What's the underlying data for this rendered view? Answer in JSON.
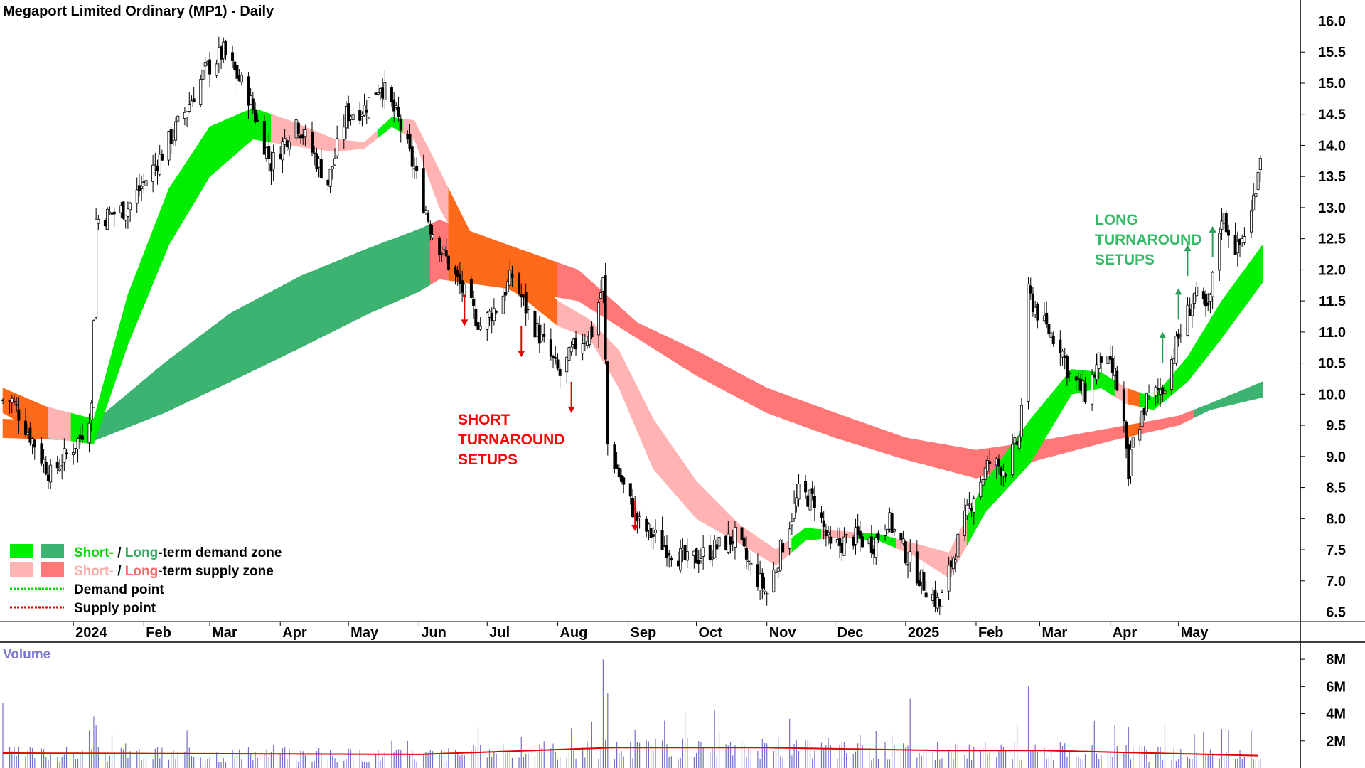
{
  "chart_data": {
    "type": "candlestick",
    "title": "Megaport Limited Ordinary (MP1) - Daily",
    "price_axis": {
      "ylim": [
        6.3,
        16.2
      ],
      "ticks": [
        "16.0",
        "15.5",
        "15.0",
        "14.5",
        "14.0",
        "13.5",
        "13.0",
        "12.5",
        "12.0",
        "11.5",
        "11.0",
        "10.5",
        "10.0",
        "9.5",
        "9.0",
        "8.5",
        "8.0",
        "7.5",
        "7.0",
        "6.5"
      ]
    },
    "x_axis": {
      "labels": [
        {
          "text": "2024",
          "date": "2024-01-01",
          "bold": true
        },
        {
          "text": "Feb",
          "date": "2024-02-01"
        },
        {
          "text": "Mar",
          "date": "2024-03-01"
        },
        {
          "text": "Apr",
          "date": "2024-04-01"
        },
        {
          "text": "May",
          "date": "2024-05-01"
        },
        {
          "text": "Jun",
          "date": "2024-06-01"
        },
        {
          "text": "Jul",
          "date": "2024-07-01"
        },
        {
          "text": "Aug",
          "date": "2024-08-01"
        },
        {
          "text": "Sep",
          "date": "2024-09-01"
        },
        {
          "text": "Oct",
          "date": "2024-10-01"
        },
        {
          "text": "Nov",
          "date": "2024-11-01"
        },
        {
          "text": "Dec",
          "date": "2024-12-01"
        },
        {
          "text": "2025",
          "date": "2025-01-01",
          "bold": true
        },
        {
          "text": "Feb",
          "date": "2025-02-01"
        },
        {
          "text": "Mar",
          "date": "2025-03-01"
        },
        {
          "text": "Apr",
          "date": "2025-04-01"
        },
        {
          "text": "May",
          "date": "2025-05-01"
        }
      ]
    },
    "price_series": [
      {
        "date": "2023-12-05",
        "close": 9.9
      },
      {
        "date": "2023-12-15",
        "close": 9.2
      },
      {
        "date": "2023-12-22",
        "close": 8.7
      },
      {
        "date": "2024-01-04",
        "close": 9.3
      },
      {
        "date": "2024-01-09",
        "close": 9.8
      },
      {
        "date": "2024-01-11",
        "close": 12.8
      },
      {
        "date": "2024-01-25",
        "close": 13.0
      },
      {
        "date": "2024-02-08",
        "close": 13.8
      },
      {
        "date": "2024-02-20",
        "close": 14.6
      },
      {
        "date": "2024-02-28",
        "close": 15.2
      },
      {
        "date": "2024-03-07",
        "close": 15.5
      },
      {
        "date": "2024-03-18",
        "close": 14.8
      },
      {
        "date": "2024-03-28",
        "close": 13.7
      },
      {
        "date": "2024-04-08",
        "close": 14.4
      },
      {
        "date": "2024-04-22",
        "close": 13.4
      },
      {
        "date": "2024-04-30",
        "close": 14.5
      },
      {
        "date": "2024-05-08",
        "close": 14.6
      },
      {
        "date": "2024-05-15",
        "close": 15.0
      },
      {
        "date": "2024-05-23",
        "close": 14.4
      },
      {
        "date": "2024-05-30",
        "close": 13.6
      },
      {
        "date": "2024-06-06",
        "close": 12.7
      },
      {
        "date": "2024-06-14",
        "close": 12.1
      },
      {
        "date": "2024-06-21",
        "close": 11.6
      },
      {
        "date": "2024-06-28",
        "close": 11.1
      },
      {
        "date": "2024-07-05",
        "close": 11.4
      },
      {
        "date": "2024-07-12",
        "close": 11.9
      },
      {
        "date": "2024-07-19",
        "close": 11.3
      },
      {
        "date": "2024-07-26",
        "close": 10.8
      },
      {
        "date": "2024-08-02",
        "close": 10.3
      },
      {
        "date": "2024-08-09",
        "close": 10.8
      },
      {
        "date": "2024-08-16",
        "close": 11.0
      },
      {
        "date": "2024-08-21",
        "close": 11.8
      },
      {
        "date": "2024-08-23",
        "close": 9.2
      },
      {
        "date": "2024-08-30",
        "close": 8.5
      },
      {
        "date": "2024-09-06",
        "close": 7.9
      },
      {
        "date": "2024-09-16",
        "close": 7.6
      },
      {
        "date": "2024-09-27",
        "close": 7.3
      },
      {
        "date": "2024-10-08",
        "close": 7.5
      },
      {
        "date": "2024-10-18",
        "close": 7.7
      },
      {
        "date": "2024-10-25",
        "close": 7.2
      },
      {
        "date": "2024-11-01",
        "close": 6.8
      },
      {
        "date": "2024-11-08",
        "close": 7.6
      },
      {
        "date": "2024-11-15",
        "close": 8.4
      },
      {
        "date": "2024-11-22",
        "close": 8.3
      },
      {
        "date": "2024-11-29",
        "close": 7.5
      },
      {
        "date": "2024-12-09",
        "close": 7.7
      },
      {
        "date": "2024-12-18",
        "close": 7.6
      },
      {
        "date": "2024-12-24",
        "close": 8.0
      },
      {
        "date": "2025-01-03",
        "close": 7.3
      },
      {
        "date": "2025-01-10",
        "close": 6.9
      },
      {
        "date": "2025-01-16",
        "close": 6.6
      },
      {
        "date": "2025-01-22",
        "close": 7.4
      },
      {
        "date": "2025-01-31",
        "close": 8.4
      },
      {
        "date": "2025-02-07",
        "close": 8.9
      },
      {
        "date": "2025-02-14",
        "close": 8.8
      },
      {
        "date": "2025-02-20",
        "close": 9.3
      },
      {
        "date": "2025-02-24",
        "close": 11.6
      },
      {
        "date": "2025-03-03",
        "close": 11.1
      },
      {
        "date": "2025-03-10",
        "close": 10.8
      },
      {
        "date": "2025-03-14",
        "close": 10.3
      },
      {
        "date": "2025-03-21",
        "close": 10.0
      },
      {
        "date": "2025-03-28",
        "close": 10.6
      },
      {
        "date": "2025-04-03",
        "close": 10.3
      },
      {
        "date": "2025-04-07",
        "close": 9.5
      },
      {
        "date": "2025-04-09",
        "close": 8.5
      },
      {
        "date": "2025-04-10",
        "close": 9.1
      },
      {
        "date": "2025-04-17",
        "close": 9.9
      },
      {
        "date": "2025-04-24",
        "close": 10.1
      },
      {
        "date": "2025-05-01",
        "close": 10.9
      },
      {
        "date": "2025-05-08",
        "close": 11.6
      },
      {
        "date": "2025-05-14",
        "close": 11.3
      },
      {
        "date": "2025-05-20",
        "close": 12.9
      },
      {
        "date": "2025-05-27",
        "close": 12.3
      },
      {
        "date": "2025-06-02",
        "close": 12.9
      },
      {
        "date": "2025-06-06",
        "close": 13.9
      }
    ],
    "bands": {
      "short_term": [
        {
          "date": "2023-12-01",
          "lo": 9.7,
          "hi": 10.1,
          "state": "supply"
        },
        {
          "date": "2023-12-20",
          "lo": 9.3,
          "hi": 9.8,
          "state": "supply"
        },
        {
          "date": "2024-01-10",
          "lo": 9.2,
          "hi": 9.6,
          "state": "demand"
        },
        {
          "date": "2024-01-25",
          "lo": 10.8,
          "hi": 11.6,
          "state": "demand"
        },
        {
          "date": "2024-02-12",
          "lo": 12.4,
          "hi": 13.3,
          "state": "demand"
        },
        {
          "date": "2024-03-01",
          "lo": 13.5,
          "hi": 14.3,
          "state": "demand"
        },
        {
          "date": "2024-03-20",
          "lo": 14.1,
          "hi": 14.6,
          "state": "demand"
        },
        {
          "date": "2024-04-05",
          "lo": 14.0,
          "hi": 14.4,
          "state": "supply"
        },
        {
          "date": "2024-04-25",
          "lo": 13.9,
          "hi": 14.1,
          "state": "supply"
        },
        {
          "date": "2024-05-08",
          "lo": 13.95,
          "hi": 14.05,
          "state": "supply"
        },
        {
          "date": "2024-05-20",
          "lo": 14.3,
          "hi": 14.45,
          "state": "demand"
        },
        {
          "date": "2024-05-30",
          "lo": 14.1,
          "hi": 14.4,
          "state": "supply"
        },
        {
          "date": "2024-06-10",
          "lo": 13.0,
          "hi": 13.6,
          "state": "supply"
        },
        {
          "date": "2024-06-25",
          "lo": 12.0,
          "hi": 12.5,
          "state": "supply"
        },
        {
          "date": "2024-07-15",
          "lo": 11.6,
          "hi": 12.1,
          "state": "supply"
        },
        {
          "date": "2024-08-01",
          "lo": 11.1,
          "hi": 11.5,
          "state": "supply"
        },
        {
          "date": "2024-08-15",
          "lo": 10.9,
          "hi": 11.2,
          "state": "supply"
        },
        {
          "date": "2024-08-28",
          "lo": 10.1,
          "hi": 10.7,
          "state": "supply"
        },
        {
          "date": "2024-09-12",
          "lo": 8.8,
          "hi": 9.6,
          "state": "supply"
        },
        {
          "date": "2024-10-01",
          "lo": 8.0,
          "hi": 8.6,
          "state": "supply"
        },
        {
          "date": "2024-10-20",
          "lo": 7.6,
          "hi": 7.9,
          "state": "supply"
        },
        {
          "date": "2024-11-05",
          "lo": 7.25,
          "hi": 7.5,
          "state": "supply"
        },
        {
          "date": "2024-11-18",
          "lo": 7.65,
          "hi": 7.85,
          "state": "demand"
        },
        {
          "date": "2024-12-02",
          "lo": 7.7,
          "hi": 7.8,
          "state": "supply"
        },
        {
          "date": "2024-12-20",
          "lo": 7.65,
          "hi": 7.75,
          "state": "demand"
        },
        {
          "date": "2025-01-05",
          "lo": 7.4,
          "hi": 7.6,
          "state": "supply"
        },
        {
          "date": "2025-01-20",
          "lo": 7.05,
          "hi": 7.45,
          "state": "supply"
        },
        {
          "date": "2025-02-05",
          "lo": 8.1,
          "hi": 8.6,
          "state": "demand"
        },
        {
          "date": "2025-02-25",
          "lo": 8.9,
          "hi": 9.6,
          "state": "demand"
        },
        {
          "date": "2025-03-15",
          "lo": 10.0,
          "hi": 10.4,
          "state": "demand"
        },
        {
          "date": "2025-03-28",
          "lo": 10.1,
          "hi": 10.35,
          "state": "demand"
        },
        {
          "date": "2025-04-08",
          "lo": 9.85,
          "hi": 10.1,
          "state": "supply"
        },
        {
          "date": "2025-04-20",
          "lo": 9.75,
          "hi": 9.95,
          "state": "demand"
        },
        {
          "date": "2025-05-05",
          "lo": 10.2,
          "hi": 10.6,
          "state": "demand"
        },
        {
          "date": "2025-05-20",
          "lo": 10.9,
          "hi": 11.5,
          "state": "demand"
        },
        {
          "date": "2025-06-07",
          "lo": 11.8,
          "hi": 12.4,
          "state": "demand"
        }
      ],
      "long_term": [
        {
          "date": "2023-12-01",
          "lo": 9.3,
          "hi": 9.6,
          "state": "supply"
        },
        {
          "date": "2024-01-10",
          "lo": 9.25,
          "hi": 9.55,
          "state": "demand"
        },
        {
          "date": "2024-02-10",
          "lo": 9.7,
          "hi": 10.5,
          "state": "demand"
        },
        {
          "date": "2024-03-10",
          "lo": 10.2,
          "hi": 11.3,
          "state": "demand"
        },
        {
          "date": "2024-04-10",
          "lo": 10.75,
          "hi": 11.9,
          "state": "demand"
        },
        {
          "date": "2024-05-10",
          "lo": 11.3,
          "hi": 12.35,
          "state": "demand"
        },
        {
          "date": "2024-06-01",
          "lo": 11.65,
          "hi": 12.65,
          "state": "demand"
        },
        {
          "date": "2024-06-10",
          "lo": 11.85,
          "hi": 12.8,
          "state": "supply"
        },
        {
          "date": "2024-07-10",
          "lo": 11.7,
          "hi": 12.4,
          "state": "supply"
        },
        {
          "date": "2024-08-10",
          "lo": 11.5,
          "hi": 12.0,
          "state": "supply"
        },
        {
          "date": "2024-09-05",
          "lo": 10.9,
          "hi": 11.15,
          "state": "supply"
        },
        {
          "date": "2024-10-01",
          "lo": 10.3,
          "hi": 10.7,
          "state": "supply"
        },
        {
          "date": "2024-11-01",
          "lo": 9.7,
          "hi": 10.1,
          "state": "supply"
        },
        {
          "date": "2024-12-01",
          "lo": 9.3,
          "hi": 9.7,
          "state": "supply"
        },
        {
          "date": "2025-01-01",
          "lo": 8.95,
          "hi": 9.3,
          "state": "supply"
        },
        {
          "date": "2025-02-01",
          "lo": 8.65,
          "hi": 9.1,
          "state": "supply"
        },
        {
          "date": "2025-03-01",
          "lo": 8.95,
          "hi": 9.25,
          "state": "supply"
        },
        {
          "date": "2025-04-01",
          "lo": 9.25,
          "hi": 9.45,
          "state": "supply"
        },
        {
          "date": "2025-05-01",
          "lo": 9.5,
          "hi": 9.65,
          "state": "supply"
        },
        {
          "date": "2025-05-15",
          "lo": 9.75,
          "hi": 9.85,
          "state": "demand"
        },
        {
          "date": "2025-06-07",
          "lo": 9.95,
          "hi": 10.2,
          "state": "demand"
        }
      ]
    },
    "short_setups": [
      {
        "date": "2024-06-21",
        "price": 11.6
      },
      {
        "date": "2024-07-16",
        "price": 11.1
      },
      {
        "date": "2024-08-07",
        "price": 10.2
      },
      {
        "date": "2024-09-04",
        "price": 8.3
      }
    ],
    "long_setups": [
      {
        "date": "2025-04-24",
        "price": 10.5
      },
      {
        "date": "2025-05-01",
        "price": 11.2
      },
      {
        "date": "2025-05-05",
        "price": 11.9
      },
      {
        "date": "2025-05-16",
        "price": 12.2
      }
    ],
    "annotations": {
      "short": [
        "SHORT",
        "TURNAROUND",
        "SETUPS"
      ],
      "long": [
        "LONG",
        "TURNAROUND",
        "SETUPS"
      ]
    },
    "legend": {
      "placement": "bottom-left",
      "items": [
        {
          "swatches": [
            "#00ee00",
            "#3cb371"
          ],
          "parts": [
            {
              "text": "Short-",
              "color": "#00dd00"
            },
            {
              "text": " / ",
              "color": "#000000"
            },
            {
              "text": "Long",
              "color": "#33aa66"
            },
            {
              "text": "-term demand zone",
              "color": "#000000"
            }
          ]
        },
        {
          "swatches": [
            "#ffb3b3",
            "#ff7777"
          ],
          "parts": [
            {
              "text": "Short-",
              "color": "#ffaaaa"
            },
            {
              "text": " / ",
              "color": "#000000"
            },
            {
              "text": "Long",
              "color": "#ff6666"
            },
            {
              "text": "-term supply zone",
              "color": "#000000"
            }
          ]
        },
        {
          "line_color": "#00dd00",
          "parts": [
            {
              "text": "Demand point",
              "color": "#000000"
            }
          ]
        },
        {
          "line_color": "#dd0000",
          "parts": [
            {
              "text": "Supply point",
              "color": "#000000"
            }
          ]
        }
      ]
    },
    "volume": {
      "label": "Volume",
      "ticks": [
        "8M",
        "6M",
        "4M",
        "2M"
      ],
      "ylim": [
        0,
        9.0
      ],
      "spikes": [
        {
          "date": "2023-12-01",
          "value": 4.8
        },
        {
          "date": "2024-01-10",
          "value": 3.8
        },
        {
          "date": "2024-05-20",
          "value": 2.0
        },
        {
          "date": "2024-08-21",
          "value": 8.0
        },
        {
          "date": "2024-08-23",
          "value": 5.5
        },
        {
          "date": "2024-11-28",
          "value": 2.2
        },
        {
          "date": "2025-01-03",
          "value": 5.1
        },
        {
          "date": "2025-02-24",
          "value": 6.0
        },
        {
          "date": "2025-04-09",
          "value": 3.0
        }
      ],
      "average": [
        {
          "date": "2023-12-01",
          "value": 1.1
        },
        {
          "date": "2024-06-01",
          "value": 1.0
        },
        {
          "date": "2024-08-25",
          "value": 1.5
        },
        {
          "date": "2024-11-01",
          "value": 1.5
        },
        {
          "date": "2025-01-15",
          "value": 1.3
        },
        {
          "date": "2025-03-01",
          "value": 1.3
        },
        {
          "date": "2025-06-07",
          "value": 0.9
        }
      ]
    },
    "colors": {
      "short_demand": "#00ee00",
      "long_demand": "#3cb371",
      "short_supply": "#ffb3b3",
      "long_supply": "#ff7777",
      "mixed_band": "#ff6a1a",
      "up_arrow": "#2e9e5b",
      "down_arrow": "#e00000",
      "volume_bar": "#7070c8",
      "volume_avg": "#e00000"
    }
  }
}
